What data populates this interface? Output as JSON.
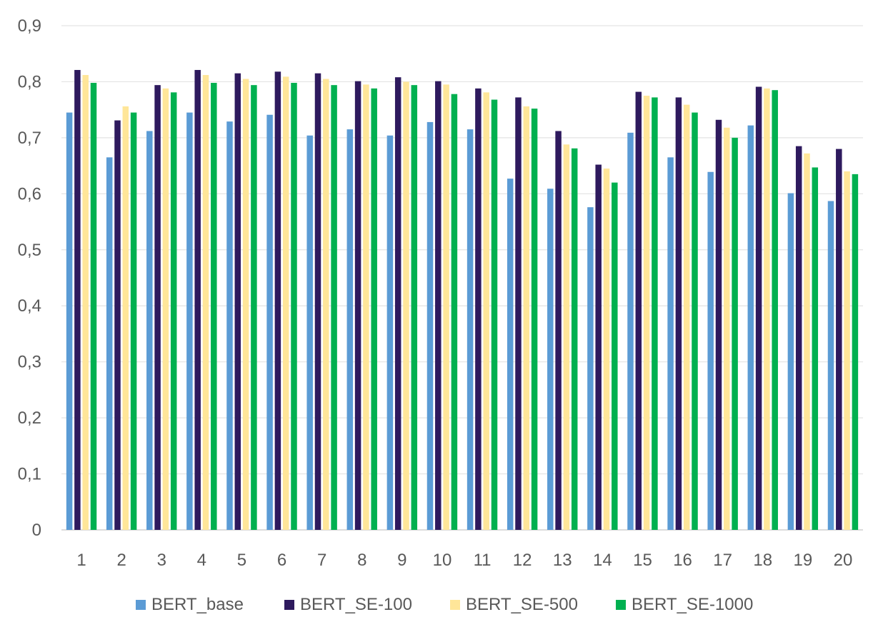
{
  "chart_data": {
    "type": "bar",
    "title": "",
    "xlabel": "",
    "ylabel": "",
    "ylim": [
      0,
      0.9
    ],
    "yticks": [
      0,
      0.1,
      0.2,
      0.3,
      0.4,
      0.5,
      0.6,
      0.7,
      0.8,
      0.9
    ],
    "ytick_labels": [
      "0",
      "0,1",
      "0,2",
      "0,3",
      "0,4",
      "0,5",
      "0,6",
      "0,7",
      "0,8",
      "0,9"
    ],
    "grid": true,
    "legend_position": "bottom",
    "categories": [
      "1",
      "2",
      "3",
      "4",
      "5",
      "6",
      "7",
      "8",
      "9",
      "10",
      "11",
      "12",
      "13",
      "14",
      "15",
      "16",
      "17",
      "18",
      "19",
      "20"
    ],
    "series": [
      {
        "name": "BERT_base",
        "color": "#5b9bd5",
        "values": [
          0.745,
          0.665,
          0.712,
          0.745,
          0.729,
          0.741,
          0.704,
          0.715,
          0.704,
          0.728,
          0.715,
          0.627,
          0.609,
          0.576,
          0.709,
          0.665,
          0.639,
          0.722,
          0.601,
          0.587
        ]
      },
      {
        "name": "BERT_SE-100",
        "color": "#2e1a5e",
        "values": [
          0.821,
          0.731,
          0.794,
          0.821,
          0.815,
          0.818,
          0.815,
          0.801,
          0.808,
          0.801,
          0.788,
          0.772,
          0.712,
          0.652,
          0.782,
          0.772,
          0.732,
          0.791,
          0.685,
          0.68
        ]
      },
      {
        "name": "BERT_SE-500",
        "color": "#ffe699",
        "values": [
          0.812,
          0.756,
          0.788,
          0.812,
          0.805,
          0.809,
          0.805,
          0.795,
          0.8,
          0.795,
          0.781,
          0.756,
          0.688,
          0.645,
          0.775,
          0.759,
          0.718,
          0.788,
          0.672,
          0.64
        ]
      },
      {
        "name": "BERT_SE-1000",
        "color": "#00b050",
        "values": [
          0.798,
          0.745,
          0.781,
          0.798,
          0.794,
          0.798,
          0.794,
          0.788,
          0.794,
          0.778,
          0.768,
          0.752,
          0.681,
          0.62,
          0.772,
          0.745,
          0.7,
          0.785,
          0.647,
          0.635
        ]
      }
    ]
  }
}
